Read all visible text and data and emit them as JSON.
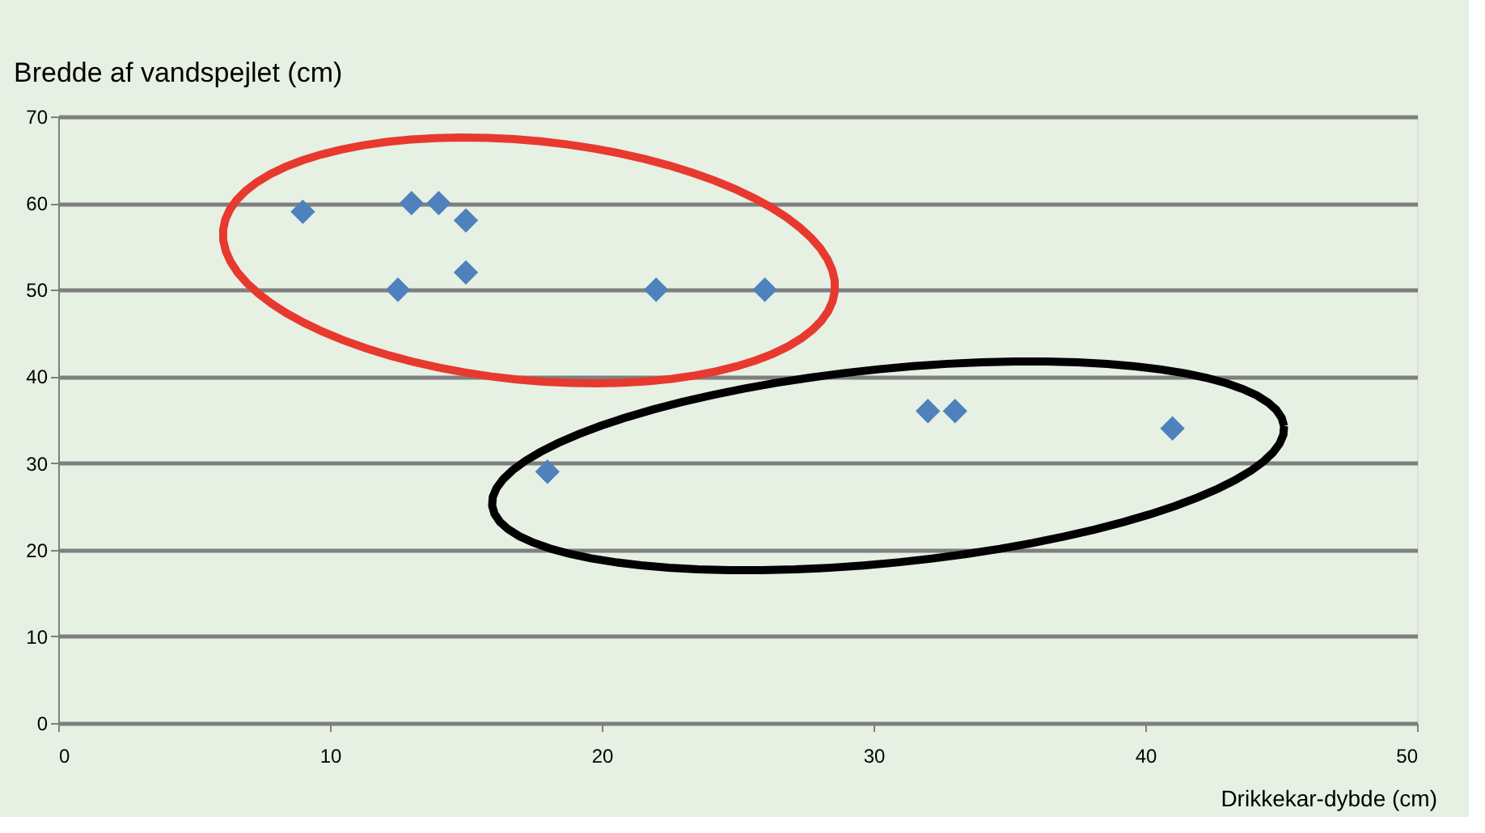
{
  "chart_data": {
    "type": "scatter",
    "xlabel": "Drikkekar-dybde (cm)",
    "ylabel": "Bredde af vandspejlet (cm)",
    "x": [
      9,
      13,
      14,
      15,
      12.5,
      15,
      22,
      26,
      18,
      32,
      33,
      41
    ],
    "series": [
      {
        "color": "#4f81bd",
        "values": [
          59,
          60,
          60,
          58,
          50,
          52,
          50,
          50,
          29,
          36,
          36,
          34
        ]
      }
    ],
    "xlim": [
      0,
      50
    ],
    "xticks": [
      0,
      10,
      20,
      30,
      40,
      50
    ],
    "ylim": [
      0,
      70
    ],
    "yticks": [
      0,
      10,
      20,
      30,
      40,
      50,
      60,
      70
    ],
    "grid": "y",
    "marker": "diamond"
  }
}
